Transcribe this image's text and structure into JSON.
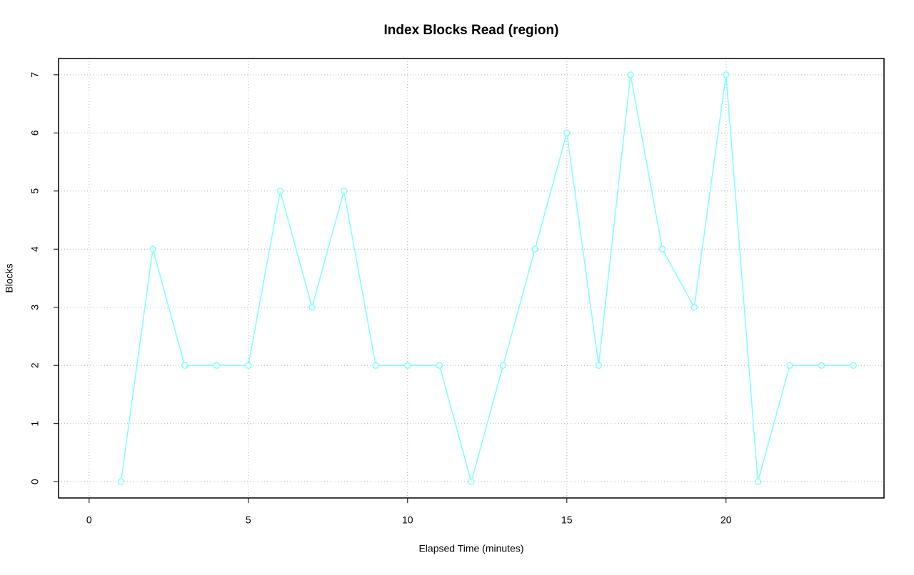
{
  "chart_data": {
    "type": "line",
    "title": "Index Blocks Read (region)",
    "x_label": "Elapsed Time (minutes)",
    "y_label": "Blocks",
    "x": [
      1,
      2,
      3,
      4,
      5,
      6,
      7,
      8,
      9,
      10,
      11,
      12,
      13,
      14,
      15,
      16,
      17,
      18,
      19,
      20,
      21,
      22,
      23,
      24
    ],
    "series": [
      {
        "name": "Blocks",
        "color": "#7fffff",
        "values": [
          0,
          4,
          2,
          2,
          2,
          5,
          3,
          5,
          2,
          2,
          2,
          0,
          2,
          4,
          6,
          2,
          7,
          4,
          3,
          7,
          0,
          2,
          2,
          2
        ]
      }
    ],
    "xlim": [
      -0.96,
      24.96
    ],
    "xticks": [
      0,
      5,
      10,
      15,
      20
    ],
    "ylim": [
      -0.28,
      7.28
    ],
    "yticks": [
      0,
      1,
      2,
      3,
      4,
      5,
      6,
      7
    ],
    "grid": true,
    "markers": true
  }
}
